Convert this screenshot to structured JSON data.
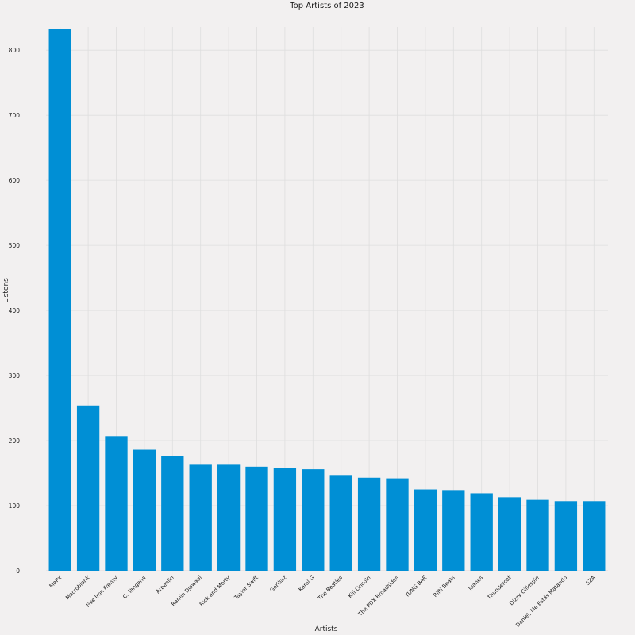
{
  "chart_data": {
    "type": "bar",
    "title": "Top Artists of 2023",
    "xlabel": "Artists",
    "ylabel": "Listens",
    "ylim": [
      0,
      860
    ],
    "yticks": [
      0,
      100,
      200,
      300,
      400,
      500,
      600,
      700,
      800
    ],
    "grid": true,
    "bar_color": "#008fd5",
    "background_color": "#f2f0f0",
    "categories": [
      "MaPx",
      "Macroblank",
      "Five Iron Frenzy",
      "C. Tangana",
      "Arbenlin",
      "Ramin Djawadi",
      "Rick and Morty",
      "Taylor Swift",
      "Gorillaz",
      "Karol G",
      "The Beatles",
      "Kill Lincoln",
      "The PDX Broadsides",
      "YUNG BAE",
      "Rifti Beats",
      "Juanes",
      "Thundercat",
      "Dizzy Gillespie",
      "Daniel, Me Estás Matando",
      "SZA"
    ],
    "values": [
      833,
      254,
      207,
      186,
      176,
      163,
      163,
      160,
      158,
      156,
      146,
      143,
      142,
      125,
      124,
      119,
      113,
      109,
      107,
      107
    ]
  }
}
